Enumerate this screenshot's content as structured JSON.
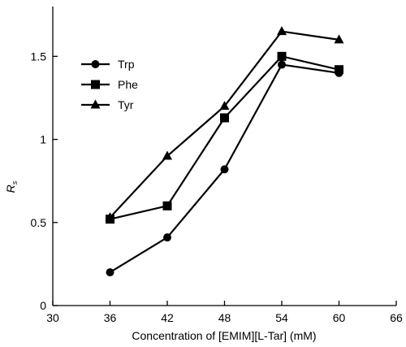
{
  "chart_data": {
    "type": "line",
    "xlabel": "Concentration of [EMIM][L-Tar] (mM)",
    "ylabel_main": "R",
    "ylabel_sub": "s",
    "xlim": [
      30,
      66
    ],
    "ylim": [
      0,
      1.8
    ],
    "x_ticks": [
      30,
      36,
      42,
      48,
      54,
      60,
      66
    ],
    "x_tick_labels": [
      "30",
      "36",
      "42",
      "48",
      "54",
      "60",
      "66"
    ],
    "y_ticks": [
      0,
      0.5,
      1,
      1.5
    ],
    "y_tick_labels": [
      "0",
      "0.5",
      "1",
      "1.5"
    ],
    "x": [
      36,
      42,
      48,
      54,
      60
    ],
    "grid": false,
    "legend_position": "top-left",
    "series": [
      {
        "name": "Trp",
        "marker": "circle",
        "values": [
          0.2,
          0.41,
          0.82,
          1.45,
          1.4
        ]
      },
      {
        "name": "Phe",
        "marker": "square",
        "values": [
          0.52,
          0.6,
          1.13,
          1.5,
          1.42
        ]
      },
      {
        "name": "Tyr",
        "marker": "triangle",
        "values": [
          0.53,
          0.9,
          1.2,
          1.65,
          1.6
        ]
      }
    ]
  }
}
